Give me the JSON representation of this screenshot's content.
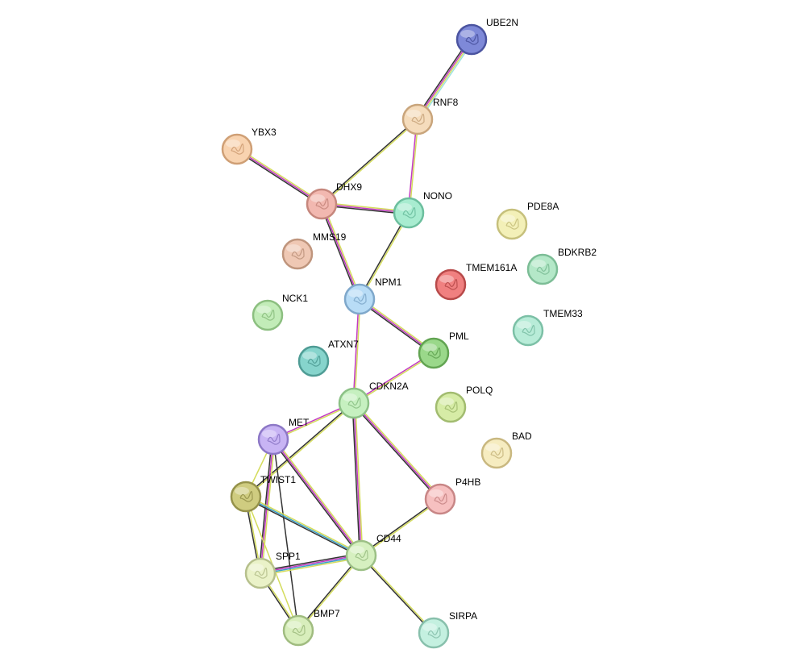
{
  "network": {
    "nodes": [
      {
        "id": "UBE2N",
        "label": "UBE2N",
        "color": "#7e89d8",
        "stroke": "#4b54a0"
      },
      {
        "id": "RNF8",
        "label": "RNF8",
        "color": "#f5dcbc",
        "stroke": "#c9a57c"
      },
      {
        "id": "YBX3",
        "label": "YBX3",
        "color": "#f8d3b0",
        "stroke": "#cf9f75"
      },
      {
        "id": "DHX9",
        "label": "DHX9",
        "color": "#f2b8b0",
        "stroke": "#c6877d"
      },
      {
        "id": "NONO",
        "label": "NONO",
        "color": "#a8ecd0",
        "stroke": "#6cbf9e"
      },
      {
        "id": "PDE8A",
        "label": "PDE8A",
        "color": "#f3f0b8",
        "stroke": "#c6c07c"
      },
      {
        "id": "MMS19",
        "label": "MMS19",
        "color": "#efc8b4",
        "stroke": "#bf957d"
      },
      {
        "id": "BDKRB2",
        "label": "BDKRB2",
        "color": "#b4e8c8",
        "stroke": "#7cbd96"
      },
      {
        "id": "TMEM161A",
        "label": "TMEM161A",
        "color": "#f08080",
        "stroke": "#b84a4a"
      },
      {
        "id": "NPM1",
        "label": "NPM1",
        "color": "#b8dcf6",
        "stroke": "#7fa8cb"
      },
      {
        "id": "NCK1",
        "label": "NCK1",
        "color": "#c2ecb8",
        "stroke": "#8cbf80"
      },
      {
        "id": "TMEM33",
        "label": "TMEM33",
        "color": "#b8ecd8",
        "stroke": "#7cc0a6"
      },
      {
        "id": "ATXN7",
        "label": "ATXN7",
        "color": "#86d4cc",
        "stroke": "#4f9c95"
      },
      {
        "id": "PML",
        "label": "PML",
        "color": "#9ad88a",
        "stroke": "#62a452"
      },
      {
        "id": "CDKN2A",
        "label": "CDKN2A",
        "color": "#c6f0c0",
        "stroke": "#8cc186"
      },
      {
        "id": "POLQ",
        "label": "POLQ",
        "color": "#d6eca6",
        "stroke": "#a2bc70"
      },
      {
        "id": "MET",
        "label": "MET",
        "color": "#c8b4f4",
        "stroke": "#8d78c6"
      },
      {
        "id": "BAD",
        "label": "BAD",
        "color": "#f6ecc0",
        "stroke": "#c9b880"
      },
      {
        "id": "TWIST1",
        "label": "TWIST1",
        "color": "#cfcc80",
        "stroke": "#95924a"
      },
      {
        "id": "P4HB",
        "label": "P4HB",
        "color": "#f6c0c0",
        "stroke": "#c88686"
      },
      {
        "id": "CD44",
        "label": "CD44",
        "color": "#d6f0c0",
        "stroke": "#9cc086"
      },
      {
        "id": "SPP1",
        "label": "SPP1",
        "color": "#eaf2c8",
        "stroke": "#b6c08c"
      },
      {
        "id": "BMP7",
        "label": "BMP7",
        "color": "#d8eebc",
        "stroke": "#a0bc80"
      },
      {
        "id": "SIRPA",
        "label": "SIRPA",
        "color": "#c4f0e0",
        "stroke": "#88c0ac"
      }
    ],
    "edges": [
      {
        "source": "UBE2N",
        "target": "RNF8",
        "types": [
          "#9ee2e0",
          "#d4dc5c",
          "#c23ac2",
          "#333333"
        ]
      },
      {
        "source": "RNF8",
        "target": "DHX9",
        "types": [
          "#d4dc5c",
          "#333333"
        ]
      },
      {
        "source": "RNF8",
        "target": "NONO",
        "types": [
          "#d4dc5c",
          "#c23ac2"
        ]
      },
      {
        "source": "YBX3",
        "target": "DHX9",
        "types": [
          "#d4dc5c",
          "#c23ac2",
          "#333333"
        ]
      },
      {
        "source": "DHX9",
        "target": "NONO",
        "types": [
          "#d4dc5c",
          "#c23ac2",
          "#333333"
        ]
      },
      {
        "source": "DHX9",
        "target": "NPM1",
        "types": [
          "#d4dc5c",
          "#c23ac2",
          "#333333"
        ]
      },
      {
        "source": "NONO",
        "target": "NPM1",
        "types": [
          "#d4dc5c",
          "#333333"
        ]
      },
      {
        "source": "NPM1",
        "target": "PML",
        "types": [
          "#d4dc5c",
          "#c23ac2",
          "#333333"
        ]
      },
      {
        "source": "NPM1",
        "target": "CDKN2A",
        "types": [
          "#d4dc5c",
          "#c23ac2"
        ]
      },
      {
        "source": "PML",
        "target": "CDKN2A",
        "types": [
          "#d4dc5c",
          "#c23ac2"
        ]
      },
      {
        "source": "CDKN2A",
        "target": "MET",
        "types": [
          "#d4dc5c",
          "#c23ac2"
        ]
      },
      {
        "source": "CDKN2A",
        "target": "TWIST1",
        "types": [
          "#d4dc5c",
          "#333333"
        ]
      },
      {
        "source": "CDKN2A",
        "target": "P4HB",
        "types": [
          "#d4dc5c",
          "#c23ac2",
          "#333333"
        ]
      },
      {
        "source": "CDKN2A",
        "target": "CD44",
        "types": [
          "#d4dc5c",
          "#c23ac2",
          "#333333"
        ]
      },
      {
        "source": "MET",
        "target": "TWIST1",
        "types": [
          "#d4dc5c"
        ]
      },
      {
        "source": "MET",
        "target": "CD44",
        "types": [
          "#d4dc5c",
          "#c23ac2",
          "#333333"
        ]
      },
      {
        "source": "MET",
        "target": "SPP1",
        "types": [
          "#d4dc5c",
          "#c23ac2",
          "#333333"
        ]
      },
      {
        "source": "MET",
        "target": "BMP7",
        "types": [
          "#333333"
        ]
      },
      {
        "source": "TWIST1",
        "target": "CD44",
        "types": [
          "#d4dc5c",
          "#3aa0c8",
          "#333333"
        ]
      },
      {
        "source": "TWIST1",
        "target": "SPP1",
        "types": [
          "#d4dc5c",
          "#333333"
        ]
      },
      {
        "source": "TWIST1",
        "target": "BMP7",
        "types": [
          "#d4dc5c"
        ]
      },
      {
        "source": "P4HB",
        "target": "CD44",
        "types": [
          "#d4dc5c",
          "#333333"
        ]
      },
      {
        "source": "CD44",
        "target": "SPP1",
        "types": [
          "#d4dc5c",
          "#3aa0c8",
          "#c23ac2",
          "#333333"
        ]
      },
      {
        "source": "CD44",
        "target": "BMP7",
        "types": [
          "#d4dc5c",
          "#333333"
        ]
      },
      {
        "source": "CD44",
        "target": "SIRPA",
        "types": [
          "#d4dc5c",
          "#333333"
        ]
      },
      {
        "source": "SPP1",
        "target": "BMP7",
        "types": [
          "#d4dc5c",
          "#333333"
        ]
      }
    ]
  }
}
